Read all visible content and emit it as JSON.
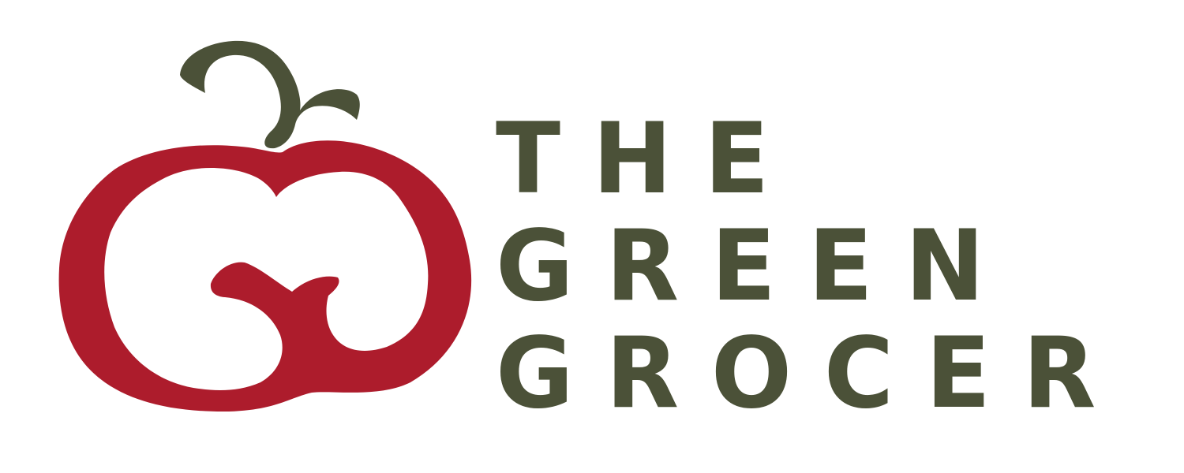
{
  "logo": {
    "brand_name_lines": [
      "THE",
      "GREEN",
      "GROCER"
    ],
    "colors": {
      "apple_red": "#ad1c2c",
      "stem_green": "#4b5138",
      "text_green": "#4b5138",
      "background": "#ffffff"
    },
    "icons": {
      "mark": "apple-g-icon",
      "stem": "apple-stem-icon"
    }
  }
}
